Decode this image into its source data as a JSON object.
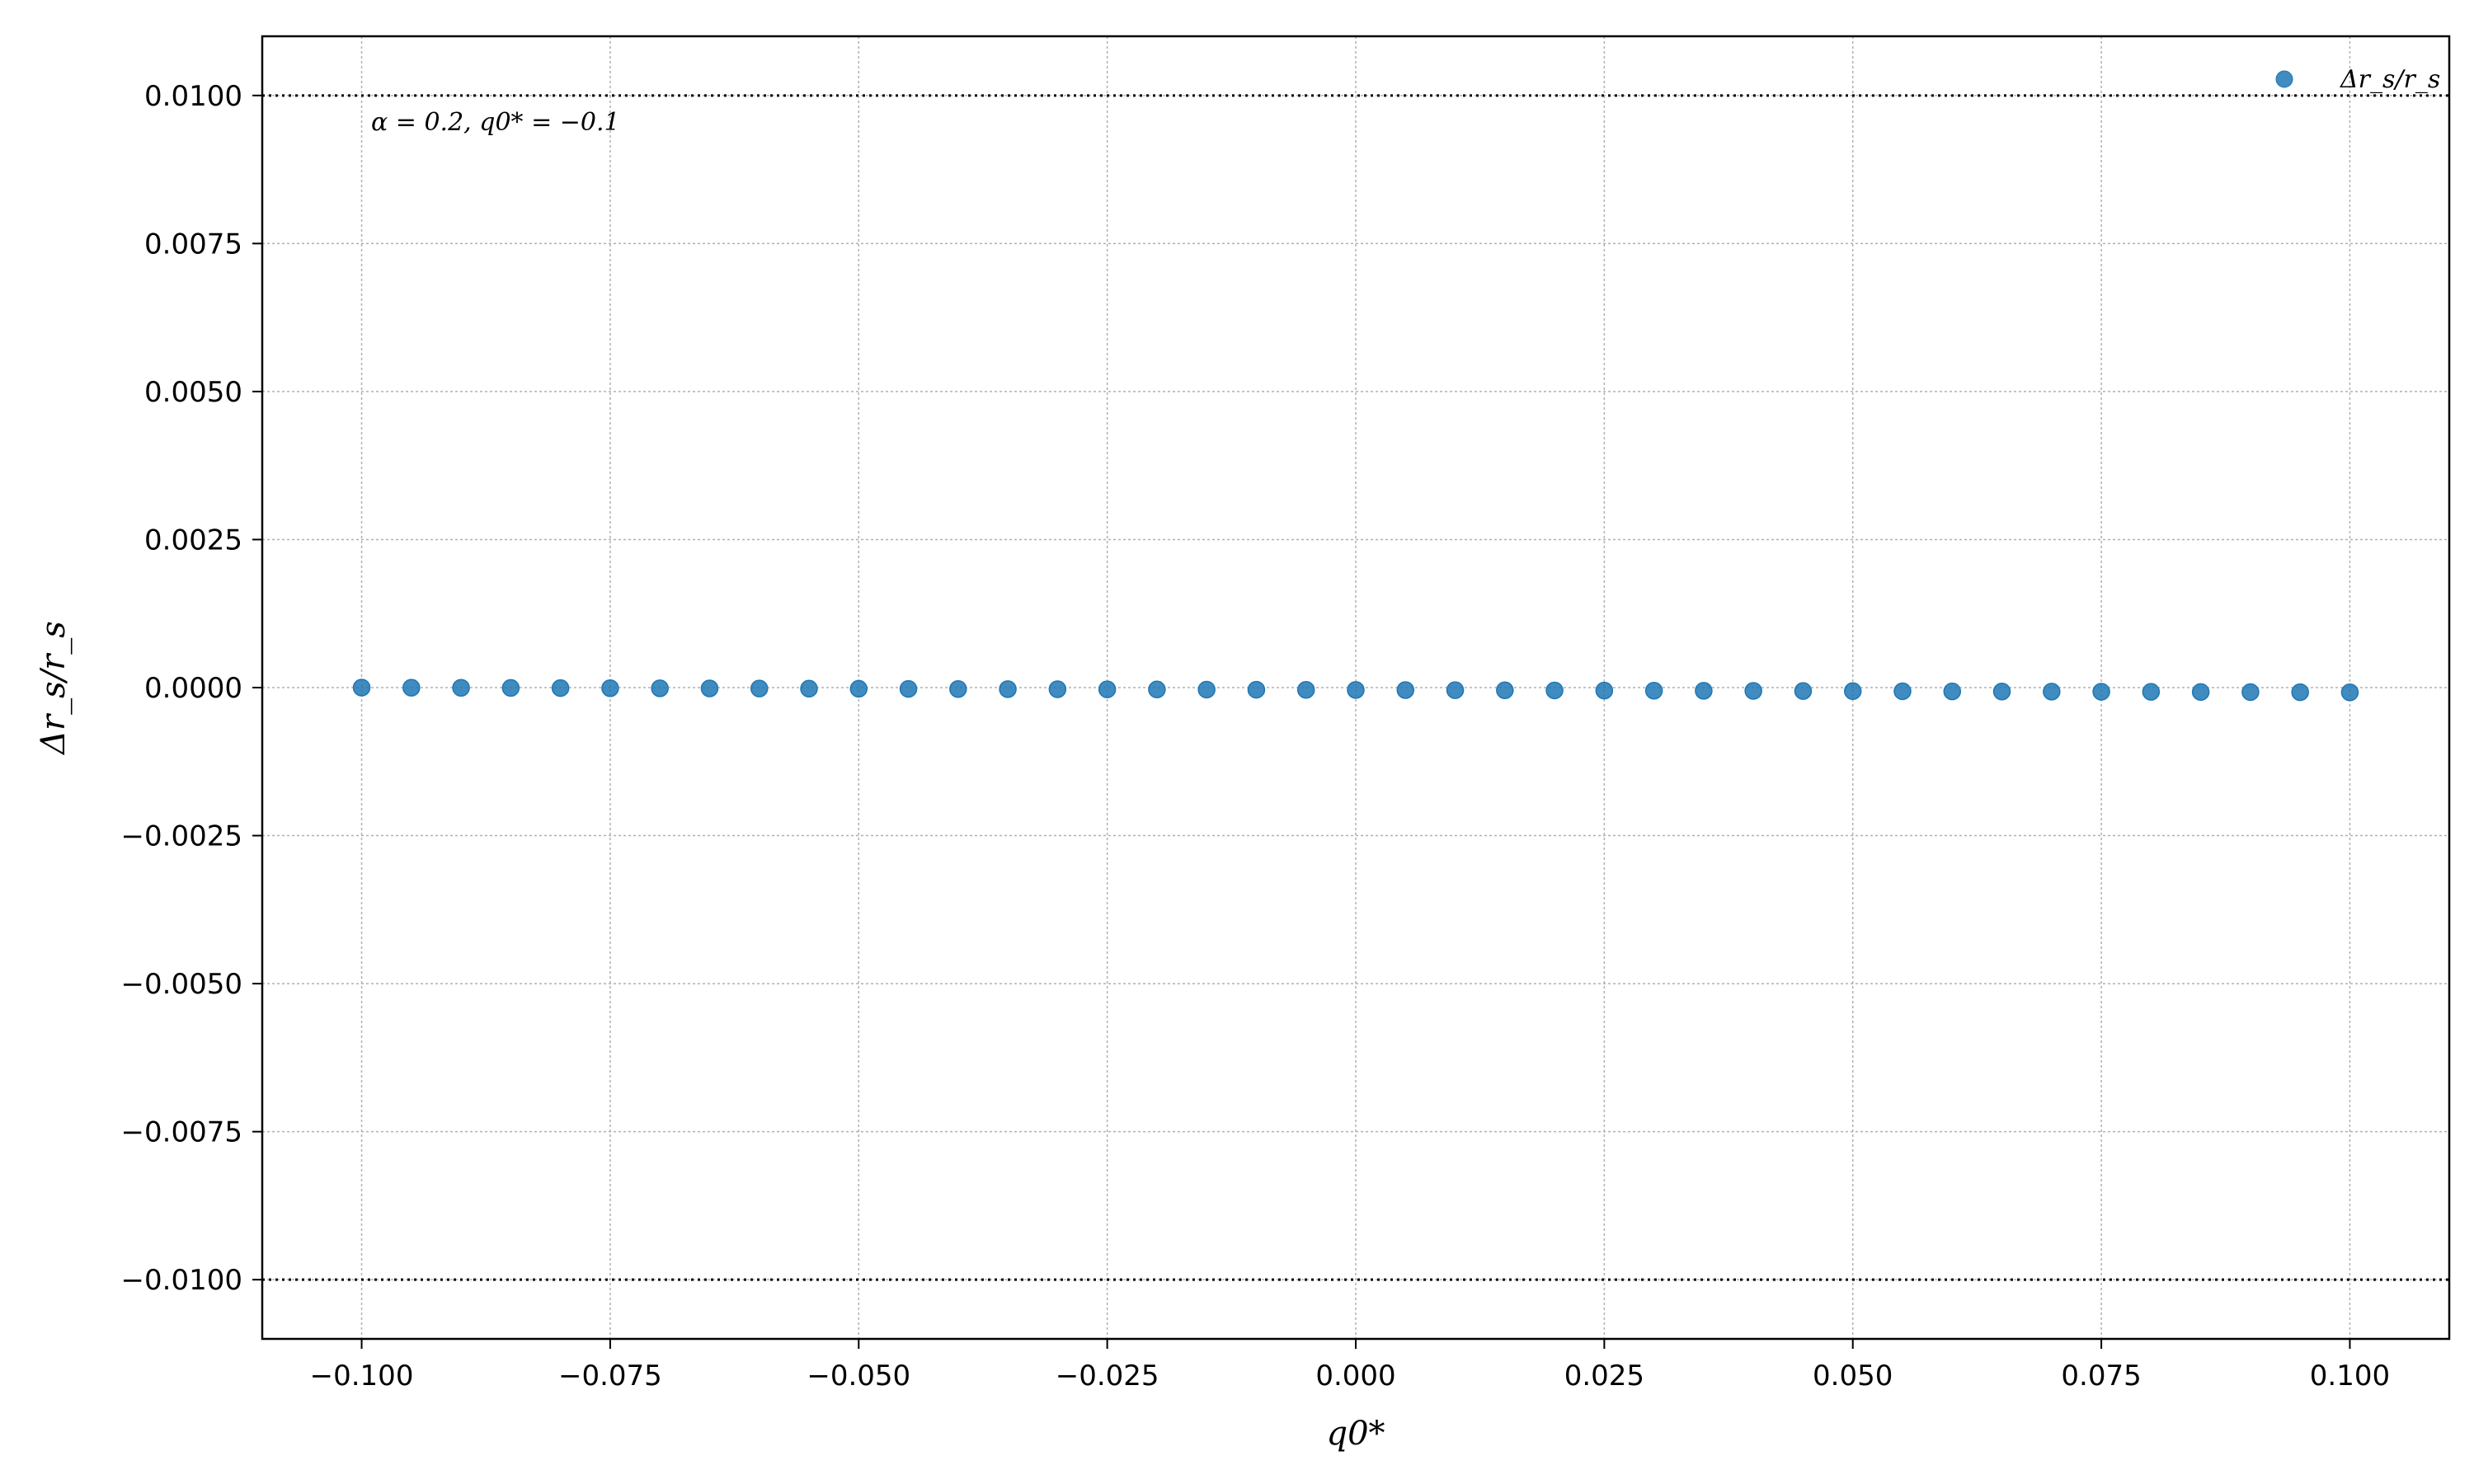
{
  "chart_data": {
    "type": "scatter",
    "title": "",
    "xlabel": "q0*",
    "ylabel": "Δr_s/r_s",
    "xlim": [
      -0.11,
      0.11
    ],
    "ylim": [
      -0.011,
      0.011
    ],
    "x_ticks": [
      -0.1,
      -0.075,
      -0.05,
      -0.025,
      0.0,
      0.025,
      0.05,
      0.075,
      0.1
    ],
    "x_tick_labels": [
      "−0.100",
      "−0.075",
      "−0.050",
      "−0.025",
      "0.000",
      "0.025",
      "0.050",
      "0.075",
      "0.100"
    ],
    "y_ticks": [
      0.01,
      0.0075,
      0.005,
      0.0025,
      0.0,
      -0.0025,
      -0.005,
      -0.0075,
      -0.01
    ],
    "y_tick_labels": [
      "0.0100",
      "0.0075",
      "0.0050",
      "0.0025",
      "0.0000",
      "−0.0025",
      "−0.0050",
      "−0.0075",
      "−0.0100"
    ],
    "grid": true,
    "reference_lines": [
      0.01,
      -0.01
    ],
    "annotation": "α = 0.2,  q0* = −0.1",
    "legend": {
      "position": "top-right",
      "entries": [
        "Δr_s/r_s"
      ]
    },
    "series": [
      {
        "name": "Δr_s/r_s",
        "color": "#1f77b4",
        "x": [
          -0.1,
          -0.095,
          -0.09,
          -0.085,
          -0.08,
          -0.075,
          -0.07,
          -0.065,
          -0.06,
          -0.055,
          -0.05,
          -0.045,
          -0.04,
          -0.035,
          -0.03,
          -0.025,
          -0.02,
          -0.015,
          -0.01,
          -0.005,
          0.0,
          0.005,
          0.01,
          0.015,
          0.02,
          0.025,
          0.03,
          0.035,
          0.04,
          0.045,
          0.05,
          0.055,
          0.06,
          0.065,
          0.07,
          0.075,
          0.08,
          0.085,
          0.09,
          0.095,
          0.1
        ],
        "y": [
          0.0,
          -2e-06,
          -4e-06,
          -6e-06,
          -8e-06,
          -1e-05,
          -1.2e-05,
          -1.4e-05,
          -1.6e-05,
          -1.8e-05,
          -2e-05,
          -2.2e-05,
          -2.4e-05,
          -2.6e-05,
          -2.8e-05,
          -3e-05,
          -3.2e-05,
          -3.4e-05,
          -3.6e-05,
          -3.8e-05,
          -4e-05,
          -4.2e-05,
          -4.4e-05,
          -4.6e-05,
          -4.8e-05,
          -5e-05,
          -5.2e-05,
          -5.4e-05,
          -5.6e-05,
          -5.8e-05,
          -6e-05,
          -6.2e-05,
          -6.4e-05,
          -6.6e-05,
          -6.8e-05,
          -7e-05,
          -7.2e-05,
          -7.4e-05,
          -7.6e-05,
          -7.8e-05,
          -8e-05
        ]
      }
    ]
  }
}
